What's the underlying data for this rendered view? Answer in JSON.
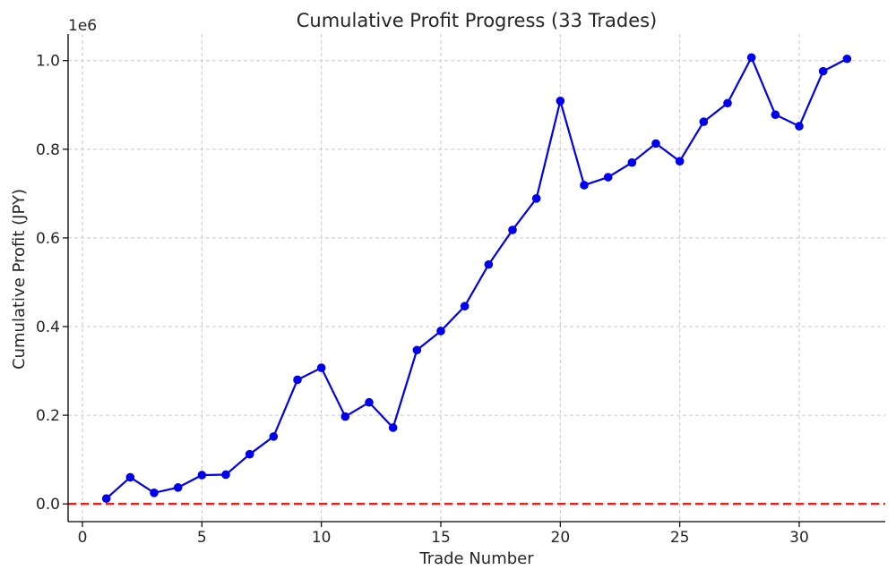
{
  "chart_data": {
    "type": "line",
    "title": "Cumulative Profit Progress (33 Trades)",
    "xlabel": "Trade Number",
    "ylabel": "Cumulative Profit (JPY)",
    "y_offset_label": "1e6",
    "xlim": [
      -0.6,
      33.6
    ],
    "ylim": [
      -0.04,
      1.06
    ],
    "x_ticks": [
      0,
      5,
      10,
      15,
      20,
      25,
      30
    ],
    "x_tick_labels": [
      "0",
      "5",
      "10",
      "15",
      "20",
      "25",
      "30"
    ],
    "y_ticks": [
      0.0,
      0.2,
      0.4,
      0.6,
      0.8,
      1.0
    ],
    "y_tick_labels": [
      "0.0",
      "0.2",
      "0.4",
      "0.6",
      "0.8",
      "1.0"
    ],
    "grid": true,
    "series": [
      {
        "color": "#0000ee",
        "marker": "circle",
        "x": [
          1,
          2,
          3,
          4,
          5,
          6,
          7,
          8,
          9,
          10,
          11,
          12,
          13,
          14,
          15,
          16,
          17,
          18,
          19,
          20,
          21,
          22,
          23,
          24,
          25,
          26,
          27,
          28,
          29,
          30,
          31,
          32
        ],
        "y": [
          0.012,
          0.06,
          0.025,
          0.037,
          0.065,
          0.066,
          0.112,
          0.152,
          0.28,
          0.307,
          0.197,
          0.229,
          0.172,
          0.347,
          0.39,
          0.446,
          0.54,
          0.618,
          0.689,
          0.909,
          0.719,
          0.737,
          0.77,
          0.813,
          0.773,
          0.862,
          0.904,
          1.007,
          0.878,
          0.852,
          0.976,
          1.004
        ]
      }
    ],
    "reference_line": {
      "y": 0.0,
      "color": "#e8201a",
      "style": "dashed"
    }
  }
}
